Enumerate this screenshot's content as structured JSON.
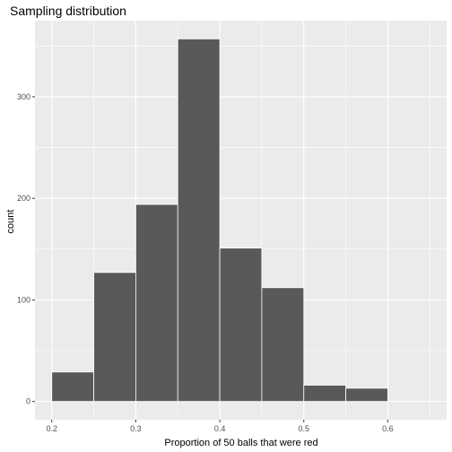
{
  "chart_data": {
    "type": "bar",
    "title": "Sampling distribution",
    "xlabel": "Proportion of 50 balls that were red",
    "ylabel": "count",
    "bins": [
      {
        "start": 0.2,
        "end": 0.25,
        "count": 29
      },
      {
        "start": 0.25,
        "end": 0.3,
        "count": 127
      },
      {
        "start": 0.3,
        "end": 0.35,
        "count": 194
      },
      {
        "start": 0.35,
        "end": 0.4,
        "count": 357
      },
      {
        "start": 0.4,
        "end": 0.45,
        "count": 151
      },
      {
        "start": 0.45,
        "end": 0.5,
        "count": 112
      },
      {
        "start": 0.5,
        "end": 0.55,
        "count": 16
      },
      {
        "start": 0.55,
        "end": 0.6,
        "count": 13
      }
    ],
    "xlim": [
      0.18,
      0.67
    ],
    "ylim": [
      -18,
      375
    ],
    "xticks": [
      0.2,
      0.3,
      0.4,
      0.5,
      0.6
    ],
    "xtick_labels": [
      "0.2",
      "0.3",
      "0.4",
      "0.5",
      "0.6"
    ],
    "yticks": [
      0,
      100,
      200,
      300
    ],
    "ytick_labels": [
      "0",
      "100",
      "200",
      "300"
    ],
    "grid": true,
    "legend": "none",
    "colors": {
      "panel": "#ebebeb",
      "grid_major": "#ffffff",
      "bar_fill": "#595959",
      "bar_outline": "#ffffff",
      "tick_text": "#4d4d4d",
      "tick_mark": "#333333"
    }
  }
}
